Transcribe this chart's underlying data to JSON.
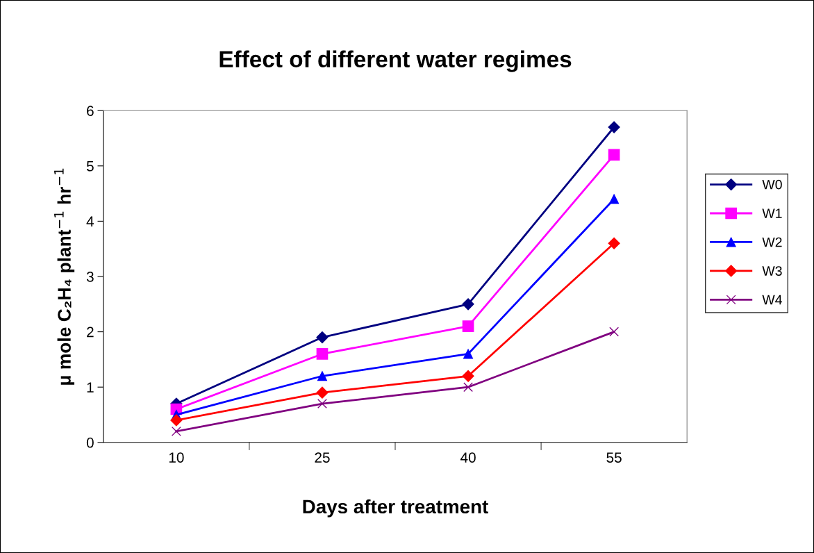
{
  "chart_data": {
    "type": "line",
    "title": "Effect of different water regimes",
    "xlabel": "Days after treatment",
    "ylabel": "μ mole C₂H₄ plant$^{−1}$ hr$^{−1}$",
    "categories": [
      "10",
      "25",
      "40",
      "55"
    ],
    "ylim": [
      0,
      6
    ],
    "yticks": [
      0,
      1,
      2,
      3,
      4,
      5,
      6
    ],
    "grid": false,
    "legend": "right",
    "series": [
      {
        "name": "W0",
        "color": "#000080",
        "marker": "diamond",
        "values": [
          0.7,
          1.9,
          2.5,
          5.7
        ]
      },
      {
        "name": "W1",
        "color": "#ff00ff",
        "marker": "square",
        "values": [
          0.6,
          1.6,
          2.1,
          5.2
        ]
      },
      {
        "name": "W2",
        "color": "#0000ff",
        "marker": "triangle",
        "values": [
          0.5,
          1.2,
          1.6,
          4.4
        ]
      },
      {
        "name": "W3",
        "color": "#ff0000",
        "marker": "diamond",
        "values": [
          0.4,
          0.9,
          1.2,
          3.6
        ]
      },
      {
        "name": "W4",
        "color": "#800080",
        "marker": "cross",
        "values": [
          0.2,
          0.7,
          1.0,
          2.0
        ]
      }
    ]
  }
}
